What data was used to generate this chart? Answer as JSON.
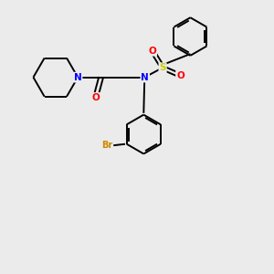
{
  "bg_color": "#ebebeb",
  "atom_colors": {
    "N": "#0000ff",
    "O": "#ff0000",
    "S": "#cccc00",
    "Br": "#cc8800",
    "C": "#000000"
  },
  "lw": 1.4,
  "fontsize": 7.5
}
